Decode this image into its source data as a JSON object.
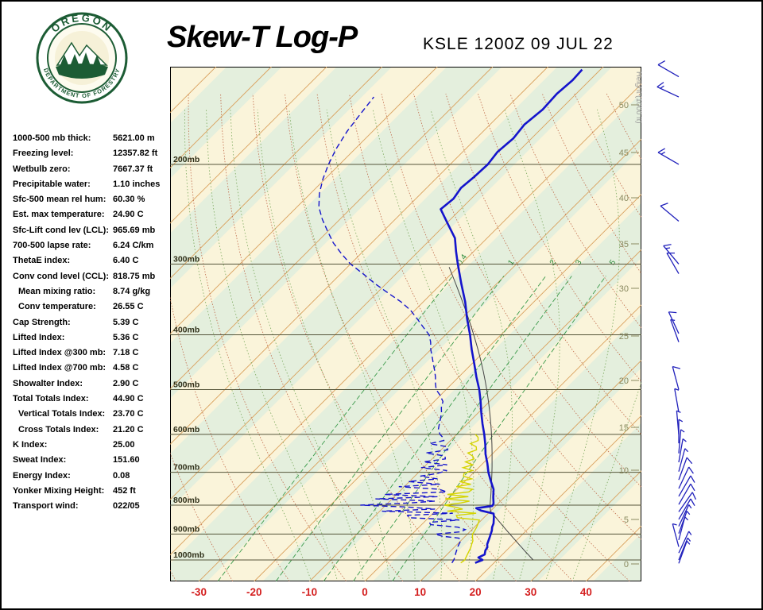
{
  "header": {
    "title": "Skew-T Log-P",
    "station_line": "KSLE 1200Z 09 JUL 22",
    "logo_text_top": "OREGON",
    "logo_text_bottom": "DEPARTMENT OF FORESTRY"
  },
  "indices": [
    {
      "label": "1000-500 mb thick:",
      "value": "5621.00 m",
      "indent": false
    },
    {
      "label": "Freezing level:",
      "value": "12357.82 ft",
      "indent": false
    },
    {
      "label": "Wetbulb zero:",
      "value": "7667.37 ft",
      "indent": false
    },
    {
      "label": "Precipitable water:",
      "value": "1.10 inches",
      "indent": false
    },
    {
      "label": "Sfc-500 mean rel hum:",
      "value": "60.30 %",
      "indent": false
    },
    {
      "label": "Est. max temperature:",
      "value": "24.90 C",
      "indent": false
    },
    {
      "label": "Sfc-Lift cond lev (LCL):",
      "value": "965.69 mb",
      "indent": false
    },
    {
      "label": "700-500 lapse rate:",
      "value": "6.24 C/km",
      "indent": false
    },
    {
      "label": "ThetaE index:",
      "value": "6.40 C",
      "indent": false
    },
    {
      "label": "Conv cond level (CCL):",
      "value": "818.75 mb",
      "indent": false
    },
    {
      "label": "Mean mixing ratio:",
      "value": "8.74 g/kg",
      "indent": true
    },
    {
      "label": "Conv temperature:",
      "value": "26.55 C",
      "indent": true
    },
    {
      "label": "Cap Strength:",
      "value": "5.39 C",
      "indent": false
    },
    {
      "label": "Lifted Index:",
      "value": "5.36 C",
      "indent": false
    },
    {
      "label": "Lifted Index @300 mb:",
      "value": "7.18 C",
      "indent": false
    },
    {
      "label": "Lifted Index @700 mb:",
      "value": "4.58 C",
      "indent": false
    },
    {
      "label": "Showalter Index:",
      "value": "2.90 C",
      "indent": false
    },
    {
      "label": "Total Totals Index:",
      "value": "44.90 C",
      "indent": false
    },
    {
      "label": "Vertical Totals Index:",
      "value": "23.70 C",
      "indent": true
    },
    {
      "label": "Cross Totals Index:",
      "value": "21.20 C",
      "indent": true
    },
    {
      "label": "K Index:",
      "value": "25.00",
      "indent": false
    },
    {
      "label": "Sweat Index:",
      "value": "151.60",
      "indent": false
    },
    {
      "label": "Energy Index:",
      "value": "0.08",
      "indent": false
    },
    {
      "label": "Yonker Mixing Height:",
      "value": "452 ft",
      "indent": false
    },
    {
      "label": "Transport wind:",
      "value": "022/05",
      "indent": false
    }
  ],
  "chart_data": {
    "type": "line",
    "title": "Skew-T Log-P",
    "station": "KSLE",
    "valid_time": "1200Z 09 JUL 22",
    "x_axis": {
      "ticks_c": [
        -30,
        -20,
        -10,
        0,
        10,
        20,
        30,
        40
      ]
    },
    "pressure_labels_mb": [
      200,
      300,
      400,
      500,
      600,
      700,
      800,
      900,
      1000
    ],
    "pressure_range_mb": [
      135,
      1091
    ],
    "height_ticks_kft": [
      0,
      5,
      10,
      15,
      20,
      25,
      30,
      35,
      40,
      45,
      50
    ],
    "height_axis_label": "Height (1000 ft)",
    "mixing_ratio_lines_gkg": [
      0.4,
      1,
      2,
      3,
      5
    ],
    "parcel": {
      "conv_temp_c": 26.55,
      "ccl_mb": 818.75
    },
    "temperature_c": [
      [
        1012,
        16.6
      ],
      [
        1000,
        17.4
      ],
      [
        990,
        16.2
      ],
      [
        978,
        16.8
      ],
      [
        962,
        16.2
      ],
      [
        950,
        16.0
      ],
      [
        938,
        15.4
      ],
      [
        925,
        15.0
      ],
      [
        912,
        14.6
      ],
      [
        900,
        14.2
      ],
      [
        888,
        13.8
      ],
      [
        875,
        13.2
      ],
      [
        862,
        12.8
      ],
      [
        850,
        12.2
      ],
      [
        838,
        11.6
      ],
      [
        828,
        11.0
      ],
      [
        818,
        8.2
      ],
      [
        810,
        6.9
      ],
      [
        803,
        9.4
      ],
      [
        795,
        9.2
      ],
      [
        775,
        8.0
      ],
      [
        750,
        6.6
      ],
      [
        725,
        4.6
      ],
      [
        700,
        2.6
      ],
      [
        675,
        0.8
      ],
      [
        650,
        -1.2
      ],
      [
        625,
        -3.0
      ],
      [
        600,
        -5.0
      ],
      [
        575,
        -7.2
      ],
      [
        550,
        -9.4
      ],
      [
        525,
        -11.6
      ],
      [
        500,
        -14.0
      ],
      [
        475,
        -16.8
      ],
      [
        450,
        -19.6
      ],
      [
        425,
        -22.6
      ],
      [
        400,
        -25.6
      ],
      [
        375,
        -29.0
      ],
      [
        350,
        -32.4
      ],
      [
        325,
        -36.4
      ],
      [
        300,
        -40.6
      ],
      [
        285,
        -43.2
      ],
      [
        270,
        -45.8
      ],
      [
        255,
        -49.6
      ],
      [
        240,
        -53.6
      ],
      [
        230,
        -53.2
      ],
      [
        220,
        -53.8
      ],
      [
        210,
        -53.4
      ],
      [
        200,
        -53.2
      ],
      [
        190,
        -53.7
      ],
      [
        180,
        -53.3
      ],
      [
        170,
        -53.8
      ],
      [
        160,
        -53.2
      ],
      [
        150,
        -53.5
      ],
      [
        142,
        -53.1
      ],
      [
        136,
        -53.3
      ]
    ],
    "dewpoint_c": [
      [
        1012,
        12.4
      ],
      [
        1000,
        12.2
      ],
      [
        985,
        11.8
      ],
      [
        975,
        11.4
      ],
      [
        962,
        11.0
      ],
      [
        950,
        10.6
      ],
      [
        938,
        10.3
      ],
      [
        925,
        10.0
      ],
      [
        915,
        9.2
      ],
      [
        908,
        5.8
      ],
      [
        900,
        4.2
      ],
      [
        892,
        8.4
      ],
      [
        884,
        8.8
      ],
      [
        875,
        7.0
      ],
      [
        866,
        1.6
      ],
      [
        858,
        1.0
      ],
      [
        850,
        6.0
      ],
      [
        842,
        -3.6
      ],
      [
        834,
        -4.2
      ],
      [
        827,
        3.6
      ],
      [
        820,
        -9.6
      ],
      [
        813,
        -0.4
      ],
      [
        806,
        -6.0
      ],
      [
        800,
        -14.6
      ],
      [
        793,
        -6.0
      ],
      [
        787,
        -1.8
      ],
      [
        780,
        -13.0
      ],
      [
        773,
        -2.2
      ],
      [
        766,
        -12.2
      ],
      [
        758,
        -1.4
      ],
      [
        750,
        -3.2
      ],
      [
        742,
        -11.0
      ],
      [
        735,
        -4.0
      ],
      [
        727,
        -10.2
      ],
      [
        719,
        -5.4
      ],
      [
        711,
        -9.0
      ],
      [
        703,
        -6.4
      ],
      [
        695,
        -5.2
      ],
      [
        687,
        -10.4
      ],
      [
        679,
        -6.2
      ],
      [
        671,
        -11.0
      ],
      [
        663,
        -7.6
      ],
      [
        655,
        -8.2
      ],
      [
        647,
        -12.2
      ],
      [
        639,
        -8.8
      ],
      [
        631,
        -9.4
      ],
      [
        623,
        -13.2
      ],
      [
        615,
        -11.2
      ],
      [
        607,
        -12.0
      ],
      [
        600,
        -13.0
      ],
      [
        588,
        -14.2
      ],
      [
        575,
        -15.0
      ],
      [
        562,
        -15.8
      ],
      [
        550,
        -16.6
      ],
      [
        538,
        -17.6
      ],
      [
        525,
        -18.4
      ],
      [
        512,
        -20.0
      ],
      [
        500,
        -21.8
      ],
      [
        488,
        -23.0
      ],
      [
        475,
        -24.2
      ],
      [
        462,
        -25.6
      ],
      [
        450,
        -27.0
      ],
      [
        438,
        -28.4
      ],
      [
        425,
        -30.0
      ],
      [
        412,
        -31.4
      ],
      [
        400,
        -33.0
      ],
      [
        388,
        -35.4
      ],
      [
        375,
        -38.0
      ],
      [
        362,
        -40.8
      ],
      [
        350,
        -44.0
      ],
      [
        338,
        -47.8
      ],
      [
        325,
        -52.0
      ],
      [
        312,
        -56.0
      ],
      [
        300,
        -60.0
      ],
      [
        288,
        -63.4
      ],
      [
        275,
        -67.0
      ],
      [
        262,
        -70.2
      ],
      [
        250,
        -73.2
      ],
      [
        238,
        -76.0
      ],
      [
        225,
        -78.4
      ],
      [
        212,
        -80.4
      ],
      [
        200,
        -82.0
      ],
      [
        188,
        -83.4
      ],
      [
        175,
        -84.6
      ],
      [
        162,
        -85.4
      ],
      [
        152,
        -86.0
      ]
    ],
    "wetbulb_c": [
      [
        1012,
        14.0
      ],
      [
        1000,
        14.2
      ],
      [
        988,
        13.9
      ],
      [
        975,
        13.6
      ],
      [
        962,
        13.3
      ],
      [
        950,
        13.0
      ],
      [
        938,
        12.6
      ],
      [
        925,
        12.2
      ],
      [
        912,
        11.5
      ],
      [
        900,
        10.9
      ],
      [
        888,
        10.7
      ],
      [
        875,
        10.4
      ],
      [
        862,
        10.0
      ],
      [
        850,
        9.6
      ],
      [
        842,
        5.2
      ],
      [
        834,
        4.6
      ],
      [
        827,
        7.8
      ],
      [
        820,
        2.2
      ],
      [
        813,
        4.6
      ],
      [
        806,
        2.8
      ],
      [
        800,
        0.6
      ],
      [
        793,
        3.2
      ],
      [
        787,
        4.4
      ],
      [
        780,
        -0.4
      ],
      [
        773,
        3.4
      ],
      [
        766,
        -0.8
      ],
      [
        758,
        2.6
      ],
      [
        750,
        2.8
      ],
      [
        742,
        -0.6
      ],
      [
        735,
        1.6
      ],
      [
        727,
        -0.9
      ],
      [
        719,
        0.8
      ],
      [
        711,
        -1.2
      ],
      [
        703,
        -1.6
      ],
      [
        695,
        -0.6
      ],
      [
        687,
        -2.8
      ],
      [
        679,
        -1.6
      ],
      [
        671,
        -3.4
      ],
      [
        663,
        -2.4
      ],
      [
        655,
        -3.2
      ],
      [
        647,
        -4.6
      ],
      [
        639,
        -3.6
      ],
      [
        631,
        -4.2
      ],
      [
        623,
        -5.8
      ],
      [
        615,
        -5.0
      ],
      [
        607,
        -5.6
      ],
      [
        600,
        -6.6
      ]
    ],
    "wind_barbs": [
      [
        140,
        300,
        10
      ],
      [
        152,
        295,
        15
      ],
      [
        200,
        300,
        15
      ],
      [
        252,
        310,
        10
      ],
      [
        300,
        320,
        15
      ],
      [
        312,
        330,
        10
      ],
      [
        398,
        335,
        10
      ],
      [
        412,
        340,
        5
      ],
      [
        500,
        345,
        10
      ],
      [
        548,
        350,
        5
      ],
      [
        600,
        355,
        5
      ],
      [
        622,
        0,
        5
      ],
      [
        648,
        5,
        5
      ],
      [
        672,
        10,
        5
      ],
      [
        698,
        15,
        5
      ],
      [
        722,
        20,
        10
      ],
      [
        748,
        25,
        10
      ],
      [
        772,
        30,
        10
      ],
      [
        798,
        30,
        10
      ],
      [
        822,
        35,
        10
      ],
      [
        848,
        30,
        10
      ],
      [
        872,
        25,
        5
      ],
      [
        898,
        20,
        5
      ],
      [
        922,
        15,
        5
      ],
      [
        948,
        345,
        5
      ],
      [
        972,
        25,
        5
      ],
      [
        1000,
        22,
        5
      ],
      [
        1014,
        20,
        5
      ]
    ]
  },
  "colors": {
    "temperature": "#1414cc",
    "dewpoint": "#1414cc",
    "wetbulb": "#d4d400",
    "parcel": "#444444",
    "isotherm": "#d9a05c",
    "dry_adiabat": "#c06a4a",
    "moist_adiabat": "#7aa85c",
    "mixing_ratio": "#3a9a4a",
    "mixing_ratio_label": "#2e8b3a",
    "pressure_line": "#55553a",
    "pressure_label": "#2f2f18",
    "height_label": "#8a8a60",
    "height_axis_label": "#999999",
    "temp_axis": "#d42020",
    "barb": "#2020bb",
    "logo_green": "#1c5c34"
  }
}
